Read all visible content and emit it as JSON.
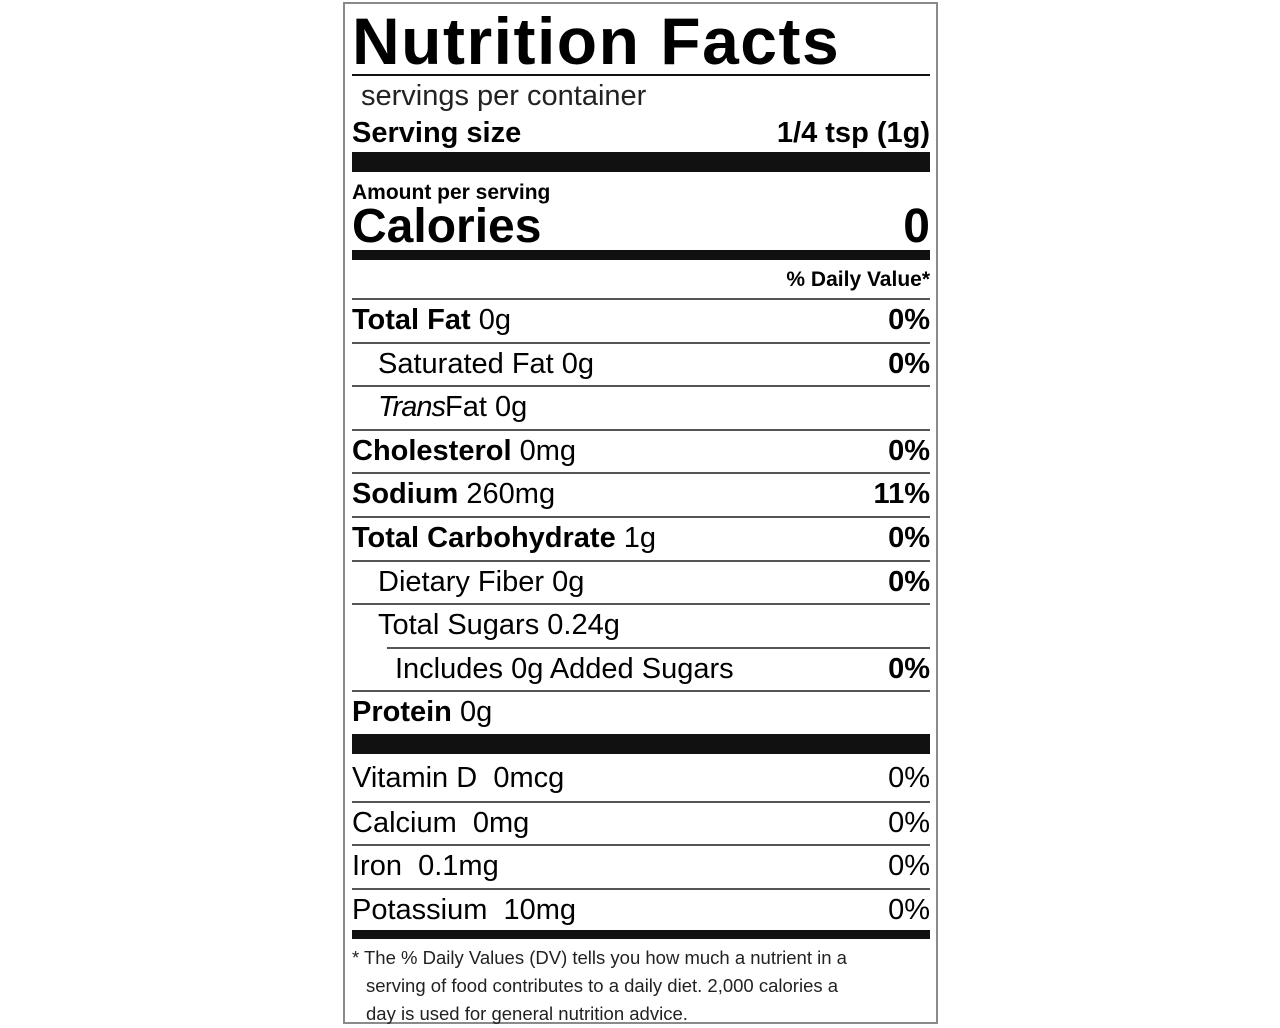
{
  "title": "Nutrition Facts",
  "servings_per_container": "servings per container",
  "serving_size": {
    "label": "Serving size",
    "value": "1/4 tsp (1g)"
  },
  "amount_per_serving": "Amount per serving",
  "calories": {
    "label": "Calories",
    "value": "0"
  },
  "daily_value_header": "% Daily Value*",
  "nutrients": [
    {
      "name": "Total Fat",
      "amount": "0g",
      "dv": "0%",
      "bold": true,
      "indent": 0
    },
    {
      "name": "Saturated Fat",
      "amount": "0g",
      "dv": "0%",
      "bold": false,
      "indent": 1
    },
    {
      "name": "Trans",
      "name_suffix": "Fat",
      "amount": "0g",
      "dv": "",
      "bold": false,
      "indent": 1,
      "italic_prefix": true
    },
    {
      "name": "Cholesterol",
      "amount": "0mg",
      "dv": "0%",
      "bold": true,
      "indent": 0
    },
    {
      "name": "Sodium",
      "amount": "260mg",
      "dv": "11%",
      "bold": true,
      "indent": 0
    },
    {
      "name": "Total Carbohydrate",
      "amount": "1g",
      "dv": "0%",
      "bold": true,
      "indent": 0
    },
    {
      "name": "Dietary Fiber",
      "amount": "0g",
      "dv": "0%",
      "bold": false,
      "indent": 1
    },
    {
      "name": "Total Sugars",
      "amount": "0.24g",
      "dv": "",
      "bold": false,
      "indent": 1
    },
    {
      "name": "Includes",
      "amount": "0g",
      "name_suffix": "Added Sugars",
      "dv": "0%",
      "bold": false,
      "indent": 2
    },
    {
      "name": "Protein",
      "amount": "0g",
      "dv": "",
      "bold": true,
      "indent": 0
    }
  ],
  "vitamins": [
    {
      "name": "Vitamin D",
      "amount": "0mcg",
      "dv": "0%"
    },
    {
      "name": "Calcium",
      "amount": "0mg",
      "dv": "0%"
    },
    {
      "name": "Iron",
      "amount": "0.1mg",
      "dv": "0%"
    },
    {
      "name": "Potassium",
      "amount": "10mg",
      "dv": "0%"
    }
  ],
  "footnote": [
    "* The % Daily Values (DV) tells you how much a nutrient in a",
    "serving of food contributes to a daily diet. 2,000 calories a",
    "day is used for general nutrition advice."
  ]
}
